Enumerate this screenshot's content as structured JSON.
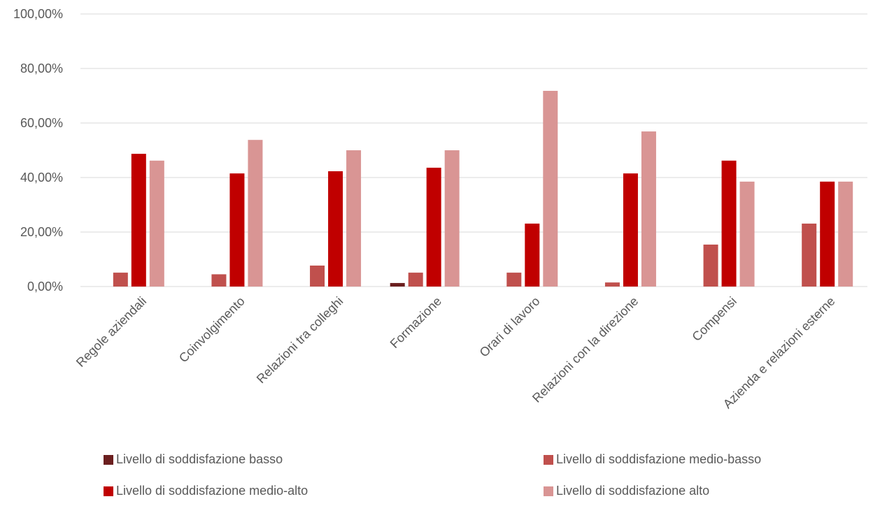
{
  "chart_data": {
    "type": "bar",
    "categories": [
      "Regole aziendali",
      "Coinvolgimento",
      "Relazioni tra colleghi",
      "Formazione",
      "Orari di lavoro",
      "Relazioni con la direzione",
      "Compensi",
      "Azienda e relazioni esterne"
    ],
    "series": [
      {
        "name": "Livello di soddisfazione basso",
        "color": "#6b1f1f",
        "values": [
          0,
          0,
          0,
          1.3,
          0,
          0,
          0,
          0
        ]
      },
      {
        "name": "Livello di soddisfazione medio-basso",
        "color": "#c0504d",
        "values": [
          5.1,
          4.5,
          7.7,
          5.1,
          5.1,
          1.5,
          15.4,
          23.1
        ]
      },
      {
        "name": "Livello di soddisfazione medio-alto",
        "color": "#c00000",
        "values": [
          48.7,
          41.5,
          42.3,
          43.6,
          23.1,
          41.5,
          46.2,
          38.5
        ]
      },
      {
        "name": "Livello di soddisfazione alto",
        "color": "#d99594",
        "values": [
          46.2,
          53.8,
          50.0,
          50.0,
          71.8,
          56.9,
          38.5,
          38.5
        ]
      }
    ],
    "ylim": [
      0,
      100
    ],
    "yticks": [
      "0,00%",
      "20,00%",
      "40,00%",
      "60,00%",
      "80,00%",
      "100,00%"
    ],
    "ytick_values": [
      0,
      20,
      40,
      60,
      80,
      100
    ],
    "grid": true,
    "legend_position": "bottom"
  }
}
